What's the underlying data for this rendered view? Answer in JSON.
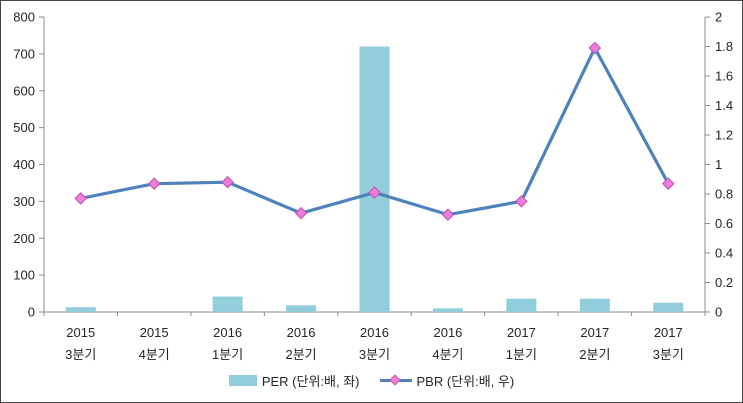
{
  "chart_data": {
    "type": "combo-bar-line",
    "categories": [
      [
        "2015",
        "3분기"
      ],
      [
        "2015",
        "4분기"
      ],
      [
        "2016",
        "1분기"
      ],
      [
        "2016",
        "2분기"
      ],
      [
        "2016",
        "3분기"
      ],
      [
        "2016",
        "4분기"
      ],
      [
        "2017",
        "1분기"
      ],
      [
        "2017",
        "2분기"
      ],
      [
        "2017",
        "3분기"
      ]
    ],
    "series": [
      {
        "name": "PER (단위:배, 좌)",
        "type": "bar",
        "axis": "left",
        "color": "#92CDDC",
        "values": [
          13,
          0,
          42,
          18,
          720,
          10,
          36,
          36,
          25
        ]
      },
      {
        "name": "PBR (단위:배, 우)",
        "type": "line",
        "axis": "right",
        "color": "#4F81BD",
        "marker_shape": "diamond",
        "marker_fill": "#EE7ED9",
        "marker_stroke": "#BE5CB8",
        "values": [
          0.77,
          0.87,
          0.88,
          0.67,
          0.81,
          0.66,
          0.75,
          1.79,
          0.87
        ]
      }
    ],
    "left_axis": {
      "min": 0,
      "max": 800,
      "ticks": [
        800,
        700,
        600,
        500,
        400,
        300,
        200,
        100,
        0
      ]
    },
    "right_axis": {
      "min": 0,
      "max": 2,
      "ticks": [
        2,
        1.8,
        1.6,
        1.4,
        1.2,
        1,
        0.8,
        0.6,
        0.4,
        0.2,
        0
      ]
    },
    "grid": false,
    "legend_position": "bottom"
  },
  "colors": {
    "axis": "#8C8C8C",
    "text": "#262626",
    "frame_border": "#454545",
    "background": "#FFFFFF"
  }
}
